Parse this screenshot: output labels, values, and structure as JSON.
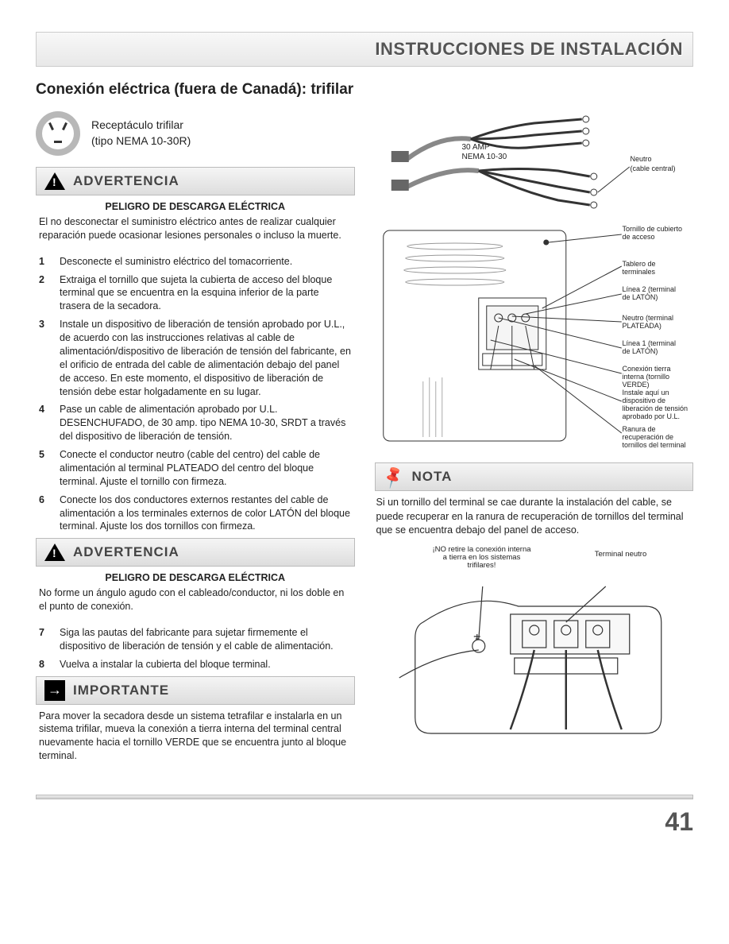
{
  "header": {
    "title": "INSTRUCCIONES DE INSTALACIÓN"
  },
  "section_title": "Conexión eléctrica (fuera de Canadá): trifilar",
  "receptacle": {
    "line1": "Receptáculo trifilar",
    "line2": "(tipo NEMA 10-30R)"
  },
  "warning1": {
    "label": "ADVERTENCIA",
    "sub": "PELIGRO DE DESCARGA ELÉCTRICA",
    "text": "El no desconectar el suministro eléctrico antes de realizar cualquier reparación puede ocasionar lesiones personales o incluso la muerte."
  },
  "steps_a": [
    {
      "n": "1",
      "t": "Desconecte el suministro eléctrico del tomacorriente."
    },
    {
      "n": "2",
      "t": "Extraiga el tornillo que sujeta la cubierta de acceso del bloque terminal que se encuentra en la esquina inferior de la parte trasera de la secadora."
    },
    {
      "n": "3",
      "t": "Instale un dispositivo de liberación de tensión aprobado por U.L., de acuerdo con las instrucciones relativas al cable de alimentación/dispositivo de liberación de tensión del fabricante, en el orificio de entrada del cable de alimentación debajo del panel de acceso. En este momento, el dispositivo de liberación de tensión debe estar holgadamente en su lugar."
    },
    {
      "n": "4",
      "t": "Pase un cable de alimentación aprobado por U.L. DESENCHUFADO, de 30 amp. tipo NEMA 10-30, SRDT a través del dispositivo de liberación de tensión."
    },
    {
      "n": "5",
      "t": "Conecte el conductor neutro (cable del centro) del cable de alimentación al terminal PLATEADO del centro del bloque terminal. Ajuste el tornillo con firmeza."
    },
    {
      "n": "6",
      "t": "Conecte los dos conductores externos restantes del cable de alimentación a los terminales externos de color LATÓN del bloque terminal. Ajuste los dos tornillos con firmeza."
    }
  ],
  "warning2": {
    "label": "ADVERTENCIA",
    "sub": "PELIGRO DE DESCARGA ELÉCTRICA",
    "text": "No forme un ángulo agudo con el cableado/conductor, ni los doble en el punto de conexión."
  },
  "steps_b": [
    {
      "n": "7",
      "t": "Siga las pautas del fabricante para sujetar firmemente el dispositivo de liberación de tensión y el cable de alimentación."
    },
    {
      "n": "8",
      "t": "Vuelva a instalar la cubierta del bloque terminal."
    }
  ],
  "important": {
    "label": "IMPORTANTE",
    "text": "Para mover la secadora desde un sistema tetrafilar e instalarla en un sistema trifilar, mueva la conexión a tierra interna del terminal central nuevamente hacia el tornillo VERDE que se encuentra junto al bloque terminal."
  },
  "diagram_top": {
    "amp": "30 AMP",
    "nema": "NEMA 10-30",
    "neutro": "Neutro",
    "neutro2": "(cable central)"
  },
  "diagram_mid": {
    "l1": "Tornillo de cubierto de acceso",
    "l2": "Tablero de terminales",
    "l3": "Línea 2 (terminal de LATÓN)",
    "l4": "Neutro (terminal PLATEADA)",
    "l5": "Línea 1 (terminal de LATÓN)",
    "l6": "Conexión tierra interna (tornillo VERDE)",
    "l7": "Instale aquí un dispositivo de liberación de tensión aprobado por U.L.",
    "l8": "Ranura de recuperación de tornillos del terminal"
  },
  "note": {
    "label": "NOTA",
    "text": "Si un tornillo del terminal se cae durante la instalación del cable, se puede recuperar en la ranura de recuperación de tornillos del terminal que se encuentra debajo del panel de acceso."
  },
  "diagram_bot": {
    "l1": "¡NO retire la conexión interna a tierra en los sistemas trifilares!",
    "l2": "Terminal neutro"
  },
  "page_number": "41",
  "colors": {
    "header_text": "#555555",
    "body_text": "#222222",
    "bar_bg_top": "#f8f8f8",
    "bar_bg_bot": "#e8e8e8"
  }
}
